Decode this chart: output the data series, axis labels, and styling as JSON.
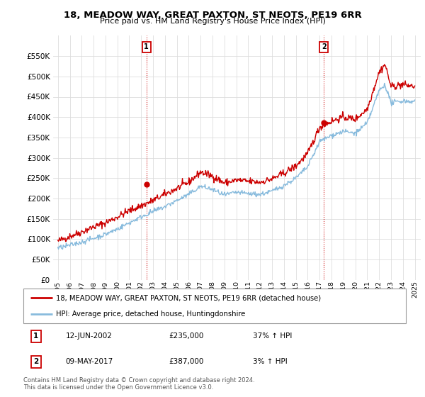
{
  "title": "18, MEADOW WAY, GREAT PAXTON, ST NEOTS, PE19 6RR",
  "subtitle": "Price paid vs. HM Land Registry's House Price Index (HPI)",
  "ylabel_ticks": [
    "£0",
    "£50K",
    "£100K",
    "£150K",
    "£200K",
    "£250K",
    "£300K",
    "£350K",
    "£400K",
    "£450K",
    "£500K",
    "£550K"
  ],
  "ylim": [
    0,
    600000
  ],
  "ytick_values": [
    0,
    50000,
    100000,
    150000,
    200000,
    250000,
    300000,
    350000,
    400000,
    450000,
    500000,
    550000
  ],
  "legend_line1": "18, MEADOW WAY, GREAT PAXTON, ST NEOTS, PE19 6RR (detached house)",
  "legend_line2": "HPI: Average price, detached house, Huntingdonshire",
  "annotation1_label": "1",
  "annotation1_date": "12-JUN-2002",
  "annotation1_price": "£235,000",
  "annotation1_hpi": "37% ↑ HPI",
  "annotation2_label": "2",
  "annotation2_date": "09-MAY-2017",
  "annotation2_price": "£387,000",
  "annotation2_hpi": "3% ↑ HPI",
  "footnote": "Contains HM Land Registry data © Crown copyright and database right 2024.\nThis data is licensed under the Open Government Licence v3.0.",
  "line_color_red": "#cc0000",
  "line_color_blue": "#88bbdd",
  "annotation_box_color": "#cc0000",
  "marker1_x": 2002.44,
  "marker1_y": 235000,
  "marker2_x": 2017.36,
  "marker2_y": 387000,
  "xlim_left": 1994.6,
  "xlim_right": 2025.5,
  "xtick_years": [
    1995,
    1996,
    1997,
    1998,
    1999,
    2000,
    2001,
    2002,
    2003,
    2004,
    2005,
    2006,
    2007,
    2008,
    2009,
    2010,
    2011,
    2012,
    2013,
    2014,
    2015,
    2016,
    2017,
    2018,
    2019,
    2020,
    2021,
    2022,
    2023,
    2024,
    2025
  ],
  "bg_color": "#ffffff",
  "grid_color": "#dddddd"
}
